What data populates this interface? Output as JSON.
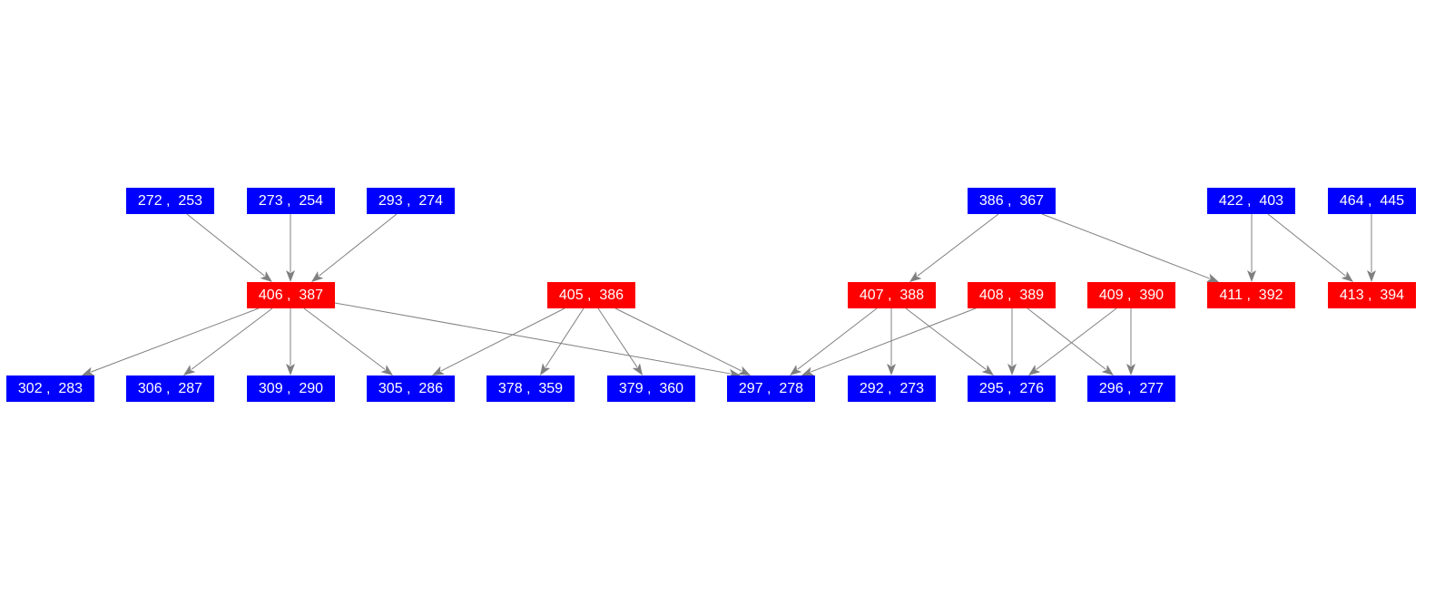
{
  "colors": {
    "blue": "#0000ff",
    "red": "#ff0000",
    "edge": "#808080",
    "text": "#ffffff"
  },
  "nodes": [
    {
      "id": "n272",
      "label": "272 ,  253",
      "color": "blue"
    },
    {
      "id": "n273",
      "label": "273 ,  254",
      "color": "blue"
    },
    {
      "id": "n293",
      "label": "293 ,  274",
      "color": "blue"
    },
    {
      "id": "n386",
      "label": "386 ,  367",
      "color": "blue"
    },
    {
      "id": "n422",
      "label": "422 ,  403",
      "color": "blue"
    },
    {
      "id": "n464",
      "label": "464 ,  445",
      "color": "blue"
    },
    {
      "id": "n406",
      "label": "406 ,  387",
      "color": "red"
    },
    {
      "id": "n405",
      "label": "405 ,  386",
      "color": "red"
    },
    {
      "id": "n407",
      "label": "407 ,  388",
      "color": "red"
    },
    {
      "id": "n408",
      "label": "408 ,  389",
      "color": "red"
    },
    {
      "id": "n409",
      "label": "409 ,  390",
      "color": "red"
    },
    {
      "id": "n411",
      "label": "411 ,  392",
      "color": "red"
    },
    {
      "id": "n413",
      "label": "413 ,  394",
      "color": "red"
    },
    {
      "id": "n302",
      "label": "302 ,  283",
      "color": "blue"
    },
    {
      "id": "n306",
      "label": "306 ,  287",
      "color": "blue"
    },
    {
      "id": "n309",
      "label": "309 ,  290",
      "color": "blue"
    },
    {
      "id": "n305",
      "label": "305 ,  286",
      "color": "blue"
    },
    {
      "id": "n378",
      "label": "378 ,  359",
      "color": "blue"
    },
    {
      "id": "n379",
      "label": "379 ,  360",
      "color": "blue"
    },
    {
      "id": "n297",
      "label": "297 ,  278",
      "color": "blue"
    },
    {
      "id": "n292",
      "label": "292 ,  273",
      "color": "blue"
    },
    {
      "id": "n295",
      "label": "295 ,  276",
      "color": "blue"
    },
    {
      "id": "n296",
      "label": "296 ,  277",
      "color": "blue"
    }
  ],
  "edges": [
    {
      "from": "n272",
      "to": "n406"
    },
    {
      "from": "n273",
      "to": "n406"
    },
    {
      "from": "n293",
      "to": "n406"
    },
    {
      "from": "n386",
      "to": "n407"
    },
    {
      "from": "n386",
      "to": "n411"
    },
    {
      "from": "n422",
      "to": "n411"
    },
    {
      "from": "n422",
      "to": "n413"
    },
    {
      "from": "n464",
      "to": "n413"
    },
    {
      "from": "n406",
      "to": "n302"
    },
    {
      "from": "n406",
      "to": "n306"
    },
    {
      "from": "n406",
      "to": "n309"
    },
    {
      "from": "n406",
      "to": "n305"
    },
    {
      "from": "n406",
      "to": "n297"
    },
    {
      "from": "n405",
      "to": "n305"
    },
    {
      "from": "n405",
      "to": "n378"
    },
    {
      "from": "n405",
      "to": "n379"
    },
    {
      "from": "n405",
      "to": "n297"
    },
    {
      "from": "n407",
      "to": "n297"
    },
    {
      "from": "n407",
      "to": "n292"
    },
    {
      "from": "n407",
      "to": "n295"
    },
    {
      "from": "n408",
      "to": "n297"
    },
    {
      "from": "n408",
      "to": "n295"
    },
    {
      "from": "n408",
      "to": "n296"
    },
    {
      "from": "n409",
      "to": "n295"
    },
    {
      "from": "n409",
      "to": "n296"
    }
  ]
}
